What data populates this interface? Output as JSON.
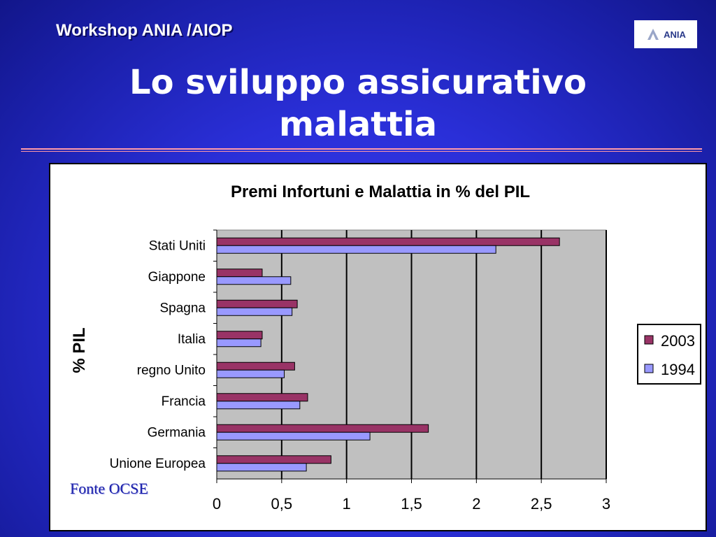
{
  "header": {
    "workshop": "Workshop ANIA /AIOP",
    "logo_text": "ANIA",
    "title_line1": "Lo sviluppo assicurativo",
    "title_line2": "malattia"
  },
  "footer": {
    "source": "Fonte OCSE"
  },
  "colors": {
    "bar_2003": "#993366",
    "bar_1994": "#9999ff",
    "plot_bg": "#c0c0c0"
  },
  "chart_data": {
    "type": "bar",
    "orientation": "horizontal",
    "title": "Premi Infortuni e Malattia in % del PIL",
    "ylabel": "% PIL",
    "xlabel": "",
    "categories": [
      "Stati Uniti",
      "Giappone",
      "Spagna",
      "Italia",
      "regno Unito",
      "Francia",
      "Germania",
      "Unione Europea"
    ],
    "series": [
      {
        "name": "2003",
        "values": [
          2.64,
          0.35,
          0.62,
          0.35,
          0.6,
          0.7,
          1.63,
          0.88
        ]
      },
      {
        "name": "1994",
        "values": [
          2.15,
          0.57,
          0.58,
          0.34,
          0.52,
          0.64,
          1.18,
          0.69
        ]
      }
    ],
    "xlim": [
      0,
      3
    ],
    "xticks": [
      "0",
      "0,5",
      "1",
      "1,5",
      "2",
      "2,5",
      "3"
    ],
    "grid": true,
    "legend": "right"
  }
}
